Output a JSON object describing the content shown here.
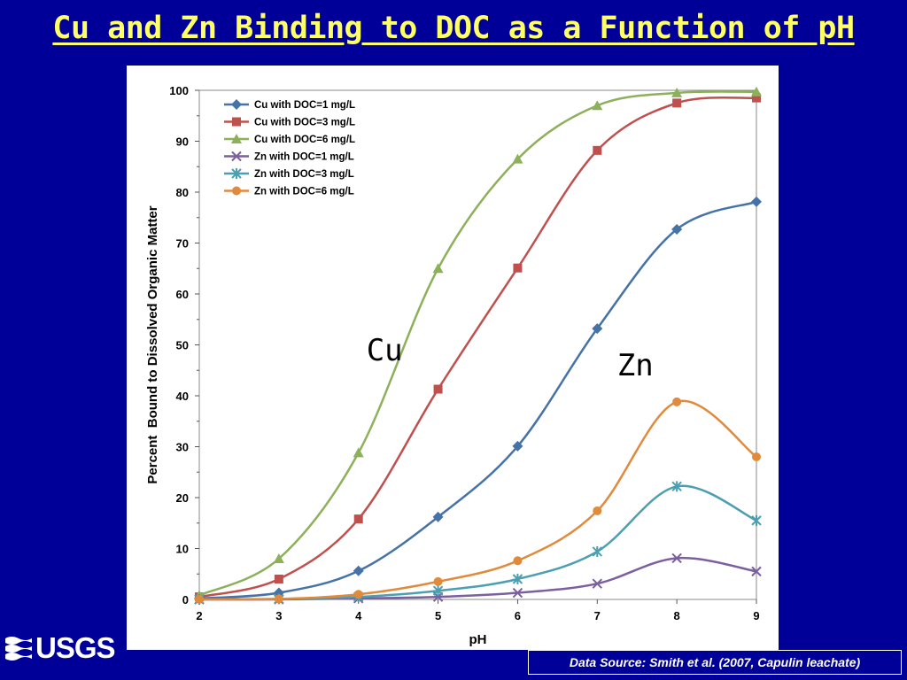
{
  "slide": {
    "title": "Cu and Zn Binding to DOC as a Function of pH",
    "source": "Data Source: Smith et al. (2007, Capulin leachate)",
    "logo_text": "USGS",
    "background": "#000099",
    "title_color": "#ffff66"
  },
  "chart_data": {
    "type": "line",
    "title": "",
    "xlabel": "pH",
    "ylabel": "Percent  Bound to Dissolved Organic Matter",
    "xlim": [
      2,
      9
    ],
    "ylim": [
      0,
      100
    ],
    "x_ticks": [
      2,
      3,
      4,
      5,
      6,
      7,
      8,
      9
    ],
    "y_ticks": [
      0,
      10,
      20,
      30,
      40,
      50,
      60,
      70,
      80,
      90,
      100
    ],
    "grid": false,
    "legend": "top-left",
    "smooth": true,
    "x": [
      2,
      3,
      4,
      5,
      6,
      7,
      8,
      9
    ],
    "series": [
      {
        "name": "Cu with DOC=1 mg/L",
        "values": [
          0.2,
          1.3,
          5.6,
          16.2,
          30.1,
          53.2,
          72.7,
          78.1
        ],
        "color": "#4572a7",
        "marker": "diamond"
      },
      {
        "name": "Cu with DOC=3 mg/L",
        "values": [
          0.5,
          4.0,
          15.8,
          41.3,
          65.1,
          88.2,
          97.5,
          98.5
        ],
        "color": "#c0504d",
        "marker": "square"
      },
      {
        "name": "Cu with DOC=6 mg/L",
        "values": [
          0.8,
          8.0,
          28.8,
          65.0,
          86.5,
          97.0,
          99.5,
          99.7
        ],
        "color": "#8db05a",
        "marker": "triangle"
      },
      {
        "name": "Zn with DOC=1 mg/L",
        "values": [
          0.0,
          0.0,
          0.2,
          0.5,
          1.3,
          3.1,
          8.1,
          5.5
        ],
        "color": "#7b5f9e",
        "marker": "x"
      },
      {
        "name": "Zn with DOC=3 mg/L",
        "values": [
          0.0,
          0.1,
          0.5,
          1.7,
          4.0,
          9.4,
          22.2,
          15.5
        ],
        "color": "#4b9fb0",
        "marker": "star"
      },
      {
        "name": "Zn with DOC=6 mg/L",
        "values": [
          0.0,
          0.1,
          1.0,
          3.5,
          7.6,
          17.4,
          38.8,
          28.0
        ],
        "color": "#e08a3c",
        "marker": "circle"
      }
    ],
    "annotations": [
      {
        "text": "Cu",
        "x": 4.1,
        "y": 47
      },
      {
        "text": "Zn",
        "x": 7.25,
        "y": 44
      }
    ]
  }
}
